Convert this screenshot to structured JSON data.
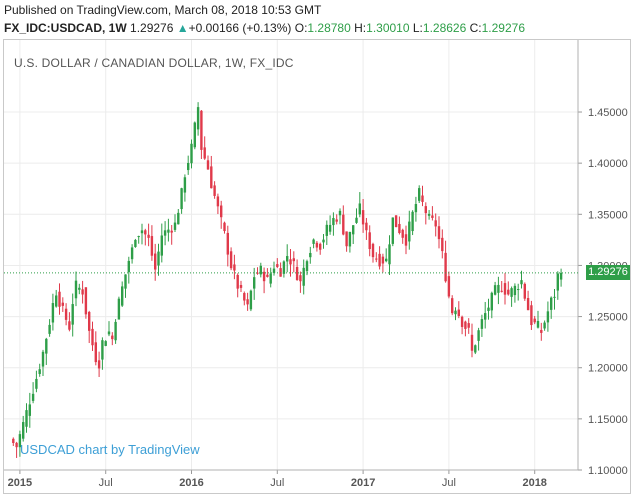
{
  "header": {
    "published": "Published on TradingView.com, March 08, 2018 10:53 GMT",
    "symbol": "FX_IDC:USDCAD, 1W",
    "last": "1.29276",
    "change_arrow": "▲",
    "change": "+0.00166 (+0.13%)",
    "o_label": "O:",
    "o_value": "1.28780",
    "h_label": "H:",
    "h_value": "1.30010",
    "l_label": "L:",
    "l_value": "1.28626",
    "c_label": "C:",
    "c_value": "1.29276"
  },
  "colors": {
    "up": "#2e9e48",
    "down": "#e0394a",
    "grid": "#e8e8e8",
    "watermark": "#3d9fd6"
  },
  "watermark": "USDCAD chart by TradingView",
  "chart_data": {
    "type": "candlestick",
    "title": "U.S. DOLLAR / CANADIAN DOLLAR, 1W, FX_IDC",
    "last_price": 1.29276,
    "last_price_label": "1.29276",
    "ylim": [
      1.1,
      1.48
    ],
    "y_ticks": [
      1.1,
      1.15,
      1.2,
      1.25,
      1.3,
      1.35,
      1.4,
      1.45
    ],
    "y_tick_labels": [
      "1.10000",
      "1.15000",
      "1.20000",
      "1.25000",
      "1.30000",
      "1.35000",
      "1.40000",
      "1.45000"
    ],
    "x_ticks": [
      {
        "label": "2015",
        "week": 3
      },
      {
        "label": "Jul",
        "week": 29
      },
      {
        "label": "2016",
        "week": 55
      },
      {
        "label": "Jul",
        "week": 81
      },
      {
        "label": "2017",
        "week": 107
      },
      {
        "label": "Jul",
        "week": 133
      },
      {
        "label": "2018",
        "week": 159
      }
    ],
    "close_path": [
      [
        0,
        1.13
      ],
      [
        2,
        1.123
      ],
      [
        4,
        1.145
      ],
      [
        6,
        1.168
      ],
      [
        8,
        1.19
      ],
      [
        10,
        1.215
      ],
      [
        12,
        1.245
      ],
      [
        13,
        1.262
      ],
      [
        14,
        1.275
      ],
      [
        16,
        1.255
      ],
      [
        18,
        1.24
      ],
      [
        19,
        1.265
      ],
      [
        20,
        1.28
      ],
      [
        22,
        1.275
      ],
      [
        24,
        1.235
      ],
      [
        26,
        1.21
      ],
      [
        27,
        1.205
      ],
      [
        28,
        1.225
      ],
      [
        30,
        1.235
      ],
      [
        31,
        1.228
      ],
      [
        32,
        1.25
      ],
      [
        34,
        1.278
      ],
      [
        36,
        1.305
      ],
      [
        37,
        1.315
      ],
      [
        38,
        1.33
      ],
      [
        40,
        1.335
      ],
      [
        42,
        1.325
      ],
      [
        43,
        1.31
      ],
      [
        44,
        1.296
      ],
      [
        46,
        1.33
      ],
      [
        48,
        1.335
      ],
      [
        50,
        1.34
      ],
      [
        52,
        1.37
      ],
      [
        53,
        1.39
      ],
      [
        55,
        1.415
      ],
      [
        57,
        1.455
      ],
      [
        58,
        1.415
      ],
      [
        60,
        1.395
      ],
      [
        61,
        1.38
      ],
      [
        63,
        1.355
      ],
      [
        65,
        1.33
      ],
      [
        67,
        1.3
      ],
      [
        69,
        1.28
      ],
      [
        71,
        1.265
      ],
      [
        72,
        1.258
      ],
      [
        74,
        1.29
      ],
      [
        76,
        1.295
      ],
      [
        78,
        1.285
      ],
      [
        80,
        1.3
      ],
      [
        82,
        1.295
      ],
      [
        84,
        1.31
      ],
      [
        86,
        1.3
      ],
      [
        88,
        1.283
      ],
      [
        90,
        1.31
      ],
      [
        92,
        1.325
      ],
      [
        94,
        1.32
      ],
      [
        96,
        1.335
      ],
      [
        98,
        1.345
      ],
      [
        100,
        1.35
      ],
      [
        102,
        1.32
      ],
      [
        104,
        1.34
      ],
      [
        106,
        1.355
      ],
      [
        108,
        1.33
      ],
      [
        110,
        1.31
      ],
      [
        112,
        1.305
      ],
      [
        114,
        1.305
      ],
      [
        116,
        1.345
      ],
      [
        118,
        1.335
      ],
      [
        120,
        1.325
      ],
      [
        122,
        1.35
      ],
      [
        124,
        1.37
      ],
      [
        125,
        1.36
      ],
      [
        127,
        1.345
      ],
      [
        129,
        1.34
      ],
      [
        131,
        1.31
      ],
      [
        133,
        1.27
      ],
      [
        134,
        1.255
      ],
      [
        135,
        1.26
      ],
      [
        137,
        1.245
      ],
      [
        139,
        1.235
      ],
      [
        140,
        1.215
      ],
      [
        141,
        1.225
      ],
      [
        143,
        1.245
      ],
      [
        145,
        1.26
      ],
      [
        147,
        1.275
      ],
      [
        149,
        1.28
      ],
      [
        151,
        1.272
      ],
      [
        153,
        1.278
      ],
      [
        155,
        1.285
      ],
      [
        156,
        1.27
      ],
      [
        158,
        1.245
      ],
      [
        160,
        1.24
      ],
      [
        161,
        1.235
      ],
      [
        162,
        1.245
      ],
      [
        163,
        1.255
      ],
      [
        164,
        1.265
      ],
      [
        165,
        1.272
      ],
      [
        166,
        1.29
      ],
      [
        167,
        1.29276
      ]
    ]
  }
}
